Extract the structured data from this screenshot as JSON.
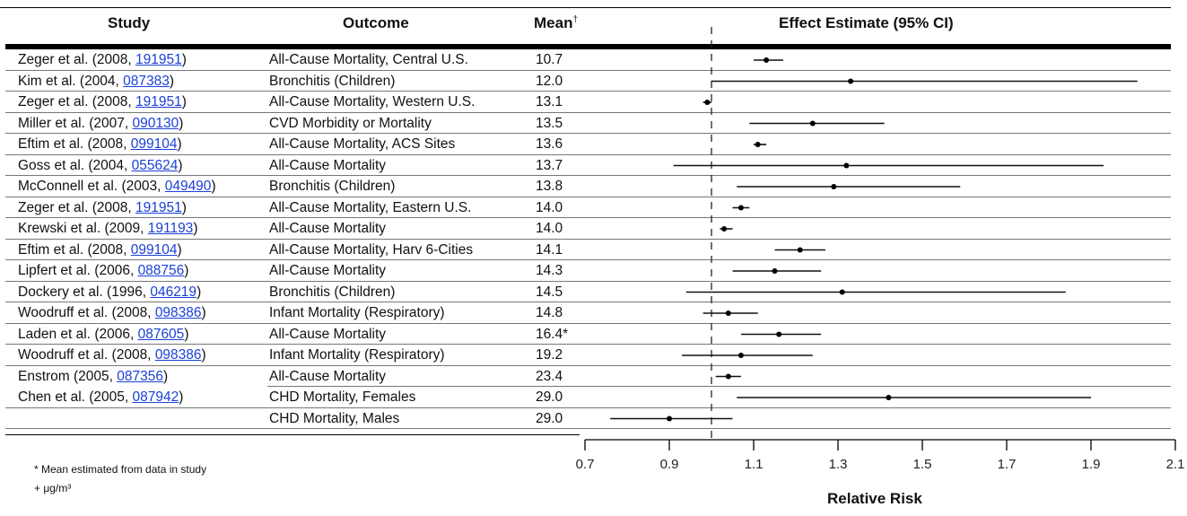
{
  "headers": {
    "study": "Study",
    "outcome": "Outcome",
    "mean": "Mean",
    "mean_mark": "†",
    "effect": "Effect Estimate (95% CI)"
  },
  "rows": [
    {
      "study_prefix": "Zeger et al. (2008, ",
      "study_id": "191951",
      "study_suffix": ")",
      "outcome": "All-Cause Mortality, Central U.S.",
      "mean": "10.7"
    },
    {
      "study_prefix": "Kim et al. (2004, ",
      "study_id": "087383",
      "study_suffix": ")",
      "outcome": "Bronchitis (Children)",
      "mean": "12.0"
    },
    {
      "study_prefix": "Zeger et al. (2008, ",
      "study_id": "191951",
      "study_suffix": ")",
      "outcome": "All-Cause Mortality, Western U.S.",
      "mean": "13.1"
    },
    {
      "study_prefix": "Miller et al. (2007, ",
      "study_id": "090130",
      "study_suffix": ")",
      "outcome": "CVD Morbidity or Mortality",
      "mean": "13.5"
    },
    {
      "study_prefix": "Eftim et al. (2008, ",
      "study_id": "099104",
      "study_suffix": ")",
      "outcome": "All-Cause Mortality, ACS Sites",
      "mean": "13.6"
    },
    {
      "study_prefix": "Goss et al. (2004, ",
      "study_id": "055624",
      "study_suffix": ")",
      "outcome": "All-Cause Mortality",
      "mean": "13.7"
    },
    {
      "study_prefix": "McConnell et al. (2003, ",
      "study_id": "049490",
      "study_suffix": ")",
      "outcome": "Bronchitis (Children)",
      "mean": "13.8"
    },
    {
      "study_prefix": "Zeger et al. (2008, ",
      "study_id": "191951",
      "study_suffix": ")",
      "outcome": "All-Cause Mortality, Eastern U.S.",
      "mean": "14.0"
    },
    {
      "study_prefix": "Krewski et al. (2009, ",
      "study_id": "191193",
      "study_suffix": ")",
      "outcome": "All-Cause Mortality",
      "mean": "14.0"
    },
    {
      "study_prefix": "Eftim et al. (2008, ",
      "study_id": "099104",
      "study_suffix": ")",
      "outcome": "All-Cause Mortality, Harv 6-Cities",
      "mean": "14.1"
    },
    {
      "study_prefix": "Lipfert et al. (2006, ",
      "study_id": "088756",
      "study_suffix": ")",
      "outcome": "All-Cause Mortality",
      "mean": "14.3"
    },
    {
      "study_prefix": "Dockery et al. (1996, ",
      "study_id": "046219",
      "study_suffix": ")",
      "outcome": "Bronchitis (Children)",
      "mean": "14.5"
    },
    {
      "study_prefix": "Woodruff et al. (2008, ",
      "study_id": "098386",
      "study_suffix": ")",
      "outcome": "Infant Mortality (Respiratory)",
      "mean": "14.8"
    },
    {
      "study_prefix": "Laden et al. (2006, ",
      "study_id": "087605",
      "study_suffix": ")",
      "outcome": "All-Cause Mortality",
      "mean": "16.4*"
    },
    {
      "study_prefix": "Woodruff et al. (2008, ",
      "study_id": "098386",
      "study_suffix": ")",
      "outcome": "Infant Mortality (Respiratory)",
      "mean": "19.2"
    },
    {
      "study_prefix": "Enstrom (2005, ",
      "study_id": "087356",
      "study_suffix": ")",
      "outcome": "All-Cause Mortality",
      "mean": "23.4"
    },
    {
      "study_prefix": "Chen et al. (2005, ",
      "study_id": "087942",
      "study_suffix": ")",
      "outcome": "CHD Mortality, Females",
      "mean": "29.0"
    },
    {
      "study_prefix": "",
      "study_id": "",
      "study_suffix": "",
      "outcome": "CHD Mortality, Males",
      "mean": "29.0"
    }
  ],
  "footnotes": {
    "asterisk": "* Mean estimated from data in study",
    "plus": "+ μg/m³"
  },
  "chart_data": {
    "type": "forest",
    "xlabel": "Relative Risk",
    "xlim": [
      0.7,
      2.1
    ],
    "xticks": [
      0.7,
      0.9,
      1.1,
      1.3,
      1.5,
      1.7,
      1.9,
      2.1
    ],
    "xtick_labels": [
      "0.7",
      "0.9",
      "1.1",
      "1.3",
      "1.5",
      "1.7",
      "1.9",
      "2.1"
    ],
    "reference_line": 1.0,
    "estimates": [
      {
        "point": 1.13,
        "low": 1.1,
        "high": 1.17
      },
      {
        "point": 1.33,
        "low": 1.0,
        "high": 2.01
      },
      {
        "point": 0.99,
        "low": 0.98,
        "high": 1.0
      },
      {
        "point": 1.24,
        "low": 1.09,
        "high": 1.41
      },
      {
        "point": 1.11,
        "low": 1.1,
        "high": 1.13
      },
      {
        "point": 1.32,
        "low": 0.91,
        "high": 1.93
      },
      {
        "point": 1.29,
        "low": 1.06,
        "high": 1.59
      },
      {
        "point": 1.07,
        "low": 1.05,
        "high": 1.09
      },
      {
        "point": 1.03,
        "low": 1.02,
        "high": 1.05
      },
      {
        "point": 1.21,
        "low": 1.15,
        "high": 1.27
      },
      {
        "point": 1.15,
        "low": 1.05,
        "high": 1.26
      },
      {
        "point": 1.31,
        "low": 0.94,
        "high": 1.84
      },
      {
        "point": 1.04,
        "low": 0.98,
        "high": 1.11
      },
      {
        "point": 1.16,
        "low": 1.07,
        "high": 1.26
      },
      {
        "point": 1.07,
        "low": 0.93,
        "high": 1.24
      },
      {
        "point": 1.04,
        "low": 1.01,
        "high": 1.07
      },
      {
        "point": 1.42,
        "low": 1.06,
        "high": 1.9
      },
      {
        "point": 0.9,
        "low": 0.76,
        "high": 1.05
      }
    ]
  }
}
